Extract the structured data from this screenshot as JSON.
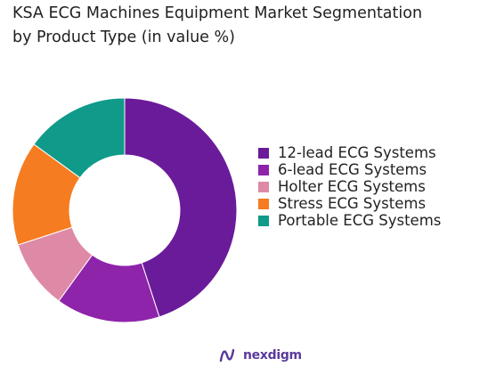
{
  "chart_data": {
    "type": "pie",
    "title": "KSA ECG Machines Equipment Market Segmentation",
    "subtitle": "by Product Type (in value %)",
    "categories": [
      "12-lead ECG Systems",
      "6-lead ECG Systems",
      "Holter ECG Systems",
      "Stress ECG Systems",
      "Portable ECG Systems"
    ],
    "values": [
      45,
      15,
      10,
      15,
      15
    ],
    "colors": [
      "#6a1b9a",
      "#8e24aa",
      "#de8aa6",
      "#f57c20",
      "#0f9a8a"
    ],
    "legend_position": "right",
    "donut": true
  },
  "branding": {
    "logo_text": "nexdigm"
  }
}
